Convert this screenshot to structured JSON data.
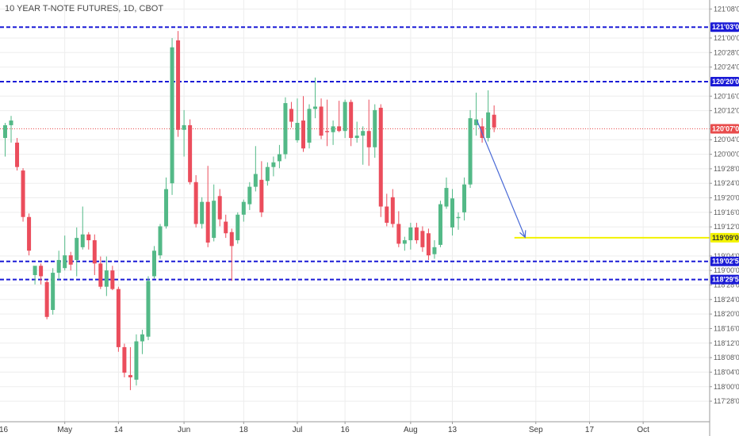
{
  "chart_data": {
    "type": "candlestick",
    "title": "10 YEAR T-NOTE FUTURES, 1D, CBOT",
    "colors": {
      "up": "#53b987",
      "down": "#eb4d5c",
      "level_line": "#1b1bd6",
      "target_line": "#f2f200",
      "arrow": "#4a6ad6",
      "last_price": "#e84c4c",
      "grid": "#ededed"
    },
    "ylim": [
      117.78,
      121.3
    ],
    "y_ticks": [
      {
        "value": 121.25,
        "label": "121'08'0"
      },
      {
        "value": 121.0,
        "label": "121'00'0"
      },
      {
        "value": 120.875,
        "label": "120'28'0"
      },
      {
        "value": 120.75,
        "label": "120'24'0"
      },
      {
        "value": 120.5,
        "label": "120'16'0"
      },
      {
        "value": 120.375,
        "label": "120'12'0"
      },
      {
        "value": 120.125,
        "label": "120'04'0"
      },
      {
        "value": 120.0,
        "label": "120'00'0"
      },
      {
        "value": 119.875,
        "label": "119'28'0"
      },
      {
        "value": 119.75,
        "label": "119'24'0"
      },
      {
        "value": 119.625,
        "label": "119'20'0"
      },
      {
        "value": 119.5,
        "label": "119'16'0"
      },
      {
        "value": 119.375,
        "label": "119'12'0"
      },
      {
        "value": 119.125,
        "label": "119'04'0"
      },
      {
        "value": 119.0,
        "label": "119'00'0"
      },
      {
        "value": 118.875,
        "label": "118'28'0"
      },
      {
        "value": 118.75,
        "label": "118'24'0"
      },
      {
        "value": 118.625,
        "label": "118'20'0"
      },
      {
        "value": 118.5,
        "label": "118'16'0"
      },
      {
        "value": 118.375,
        "label": "118'12'0"
      },
      {
        "value": 118.25,
        "label": "118'08'0"
      },
      {
        "value": 118.125,
        "label": "118'04'0"
      },
      {
        "value": 118.0,
        "label": "118'00'0"
      },
      {
        "value": 117.875,
        "label": "117'28'0"
      }
    ],
    "x_ticks": [
      {
        "bar": -1,
        "label": "16"
      },
      {
        "bar": 10,
        "label": "May"
      },
      {
        "bar": 19,
        "label": "14"
      },
      {
        "bar": 30,
        "label": "Jun"
      },
      {
        "bar": 40,
        "label": "18"
      },
      {
        "bar": 49,
        "label": "Jul"
      },
      {
        "bar": 57,
        "label": "16"
      },
      {
        "bar": 68,
        "label": "Aug"
      },
      {
        "bar": 75,
        "label": "13"
      },
      {
        "bar": 89,
        "label": "Sep"
      },
      {
        "bar": 98,
        "label": "17"
      },
      {
        "bar": 107,
        "label": "Oct"
      }
    ],
    "horizontal_levels": [
      {
        "value": 121.09375,
        "label": "121'03'0",
        "style": "dashed"
      },
      {
        "value": 120.625,
        "label": "120'20'0",
        "style": "dashed"
      },
      {
        "value": 119.078,
        "label": "119'02'5",
        "style": "dashed"
      },
      {
        "value": 118.922,
        "label": "118'29'5",
        "style": "dashed"
      }
    ],
    "target_level": {
      "value": 119.28125,
      "label": "119'09'0",
      "from_bar": 87
    },
    "last_price": {
      "value": 120.21875,
      "label": "120'07'0"
    },
    "projection_arrow": {
      "from_bar": 79,
      "from_value": 120.29,
      "to_bar": 88,
      "to_value": 119.285
    },
    "candles": [
      {
        "o": 120.14,
        "h": 120.27,
        "l": 119.98,
        "c": 120.25
      },
      {
        "o": 120.25,
        "h": 120.33,
        "l": 120.1,
        "c": 120.29
      },
      {
        "o": 120.1,
        "h": 120.14,
        "l": 119.86,
        "c": 119.89
      },
      {
        "o": 119.86,
        "h": 119.88,
        "l": 119.42,
        "c": 119.46
      },
      {
        "o": 119.46,
        "h": 119.49,
        "l": 119.13,
        "c": 119.17
      },
      {
        "o": 118.96,
        "h": 119.02,
        "l": 118.88,
        "c": 119.04
      },
      {
        "o": 119.04,
        "h": 119.06,
        "l": 118.88,
        "c": 118.95
      },
      {
        "o": 118.9,
        "h": 118.92,
        "l": 118.58,
        "c": 118.6
      },
      {
        "o": 118.66,
        "h": 119.02,
        "l": 118.62,
        "c": 118.98
      },
      {
        "o": 118.98,
        "h": 119.17,
        "l": 118.92,
        "c": 119.09
      },
      {
        "o": 119.02,
        "h": 119.3,
        "l": 119.0,
        "c": 119.13
      },
      {
        "o": 119.13,
        "h": 119.16,
        "l": 119.0,
        "c": 119.05
      },
      {
        "o": 119.09,
        "h": 119.37,
        "l": 118.95,
        "c": 119.28
      },
      {
        "o": 119.2,
        "h": 119.55,
        "l": 119.18,
        "c": 119.31
      },
      {
        "o": 119.31,
        "h": 119.33,
        "l": 119.18,
        "c": 119.26
      },
      {
        "o": 119.26,
        "h": 119.31,
        "l": 118.96,
        "c": 119.06
      },
      {
        "o": 119.06,
        "h": 119.12,
        "l": 118.84,
        "c": 118.86
      },
      {
        "o": 118.86,
        "h": 119.12,
        "l": 118.78,
        "c": 119.0
      },
      {
        "o": 119.0,
        "h": 119.04,
        "l": 118.83,
        "c": 118.84
      },
      {
        "o": 118.84,
        "h": 118.86,
        "l": 118.3,
        "c": 118.34
      },
      {
        "o": 118.34,
        "h": 118.37,
        "l": 118.08,
        "c": 118.12
      },
      {
        "o": 118.1,
        "h": 118.34,
        "l": 117.97,
        "c": 118.08
      },
      {
        "o": 118.06,
        "h": 118.45,
        "l": 118.01,
        "c": 118.39
      },
      {
        "o": 118.39,
        "h": 118.49,
        "l": 118.28,
        "c": 118.45
      },
      {
        "o": 118.43,
        "h": 118.95,
        "l": 118.4,
        "c": 118.91
      },
      {
        "o": 118.95,
        "h": 119.21,
        "l": 118.93,
        "c": 119.17
      },
      {
        "o": 119.13,
        "h": 119.4,
        "l": 119.1,
        "c": 119.38
      },
      {
        "o": 119.38,
        "h": 119.8,
        "l": 119.36,
        "c": 119.7
      },
      {
        "o": 119.75,
        "h": 121.0,
        "l": 119.65,
        "c": 120.92
      },
      {
        "o": 120.98,
        "h": 121.06,
        "l": 120.15,
        "c": 120.21
      },
      {
        "o": 120.21,
        "h": 120.38,
        "l": 119.98,
        "c": 120.25
      },
      {
        "o": 120.25,
        "h": 120.3,
        "l": 119.74,
        "c": 119.76
      },
      {
        "o": 119.76,
        "h": 119.82,
        "l": 119.37,
        "c": 119.4
      },
      {
        "o": 119.4,
        "h": 119.63,
        "l": 119.36,
        "c": 119.59
      },
      {
        "o": 119.59,
        "h": 119.9,
        "l": 119.2,
        "c": 119.24
      },
      {
        "o": 119.28,
        "h": 119.74,
        "l": 119.25,
        "c": 119.6
      },
      {
        "o": 119.64,
        "h": 119.7,
        "l": 119.38,
        "c": 119.44
      },
      {
        "o": 119.42,
        "h": 119.48,
        "l": 119.28,
        "c": 119.32
      },
      {
        "o": 119.33,
        "h": 119.36,
        "l": 118.91,
        "c": 119.21
      },
      {
        "o": 119.26,
        "h": 119.5,
        "l": 119.23,
        "c": 119.48
      },
      {
        "o": 119.48,
        "h": 119.61,
        "l": 119.42,
        "c": 119.59
      },
      {
        "o": 119.57,
        "h": 119.76,
        "l": 119.52,
        "c": 119.72
      },
      {
        "o": 119.72,
        "h": 120.07,
        "l": 119.68,
        "c": 119.83
      },
      {
        "o": 119.78,
        "h": 119.94,
        "l": 119.46,
        "c": 119.5
      },
      {
        "o": 119.77,
        "h": 119.93,
        "l": 119.73,
        "c": 119.89
      },
      {
        "o": 119.89,
        "h": 119.98,
        "l": 119.81,
        "c": 119.93
      },
      {
        "o": 119.94,
        "h": 120.08,
        "l": 119.88,
        "c": 120.0
      },
      {
        "o": 120.0,
        "h": 120.49,
        "l": 119.96,
        "c": 120.44
      },
      {
        "o": 120.39,
        "h": 120.45,
        "l": 120.23,
        "c": 120.28
      },
      {
        "o": 120.12,
        "h": 120.48,
        "l": 120.1,
        "c": 120.27
      },
      {
        "o": 120.29,
        "h": 120.5,
        "l": 120.02,
        "c": 120.05
      },
      {
        "o": 120.1,
        "h": 120.43,
        "l": 120.05,
        "c": 120.39
      },
      {
        "o": 120.39,
        "h": 120.66,
        "l": 120.31,
        "c": 120.41
      },
      {
        "o": 120.41,
        "h": 120.48,
        "l": 120.13,
        "c": 120.16
      },
      {
        "o": 120.2,
        "h": 120.47,
        "l": 120.07,
        "c": 120.19
      },
      {
        "o": 120.19,
        "h": 120.29,
        "l": 120.08,
        "c": 120.24
      },
      {
        "o": 120.24,
        "h": 120.46,
        "l": 120.19,
        "c": 120.2
      },
      {
        "o": 120.2,
        "h": 120.47,
        "l": 120.14,
        "c": 120.45
      },
      {
        "o": 120.45,
        "h": 120.47,
        "l": 120.07,
        "c": 120.14
      },
      {
        "o": 120.14,
        "h": 120.28,
        "l": 120.1,
        "c": 120.16
      },
      {
        "o": 120.16,
        "h": 120.24,
        "l": 119.91,
        "c": 120.2
      },
      {
        "o": 120.2,
        "h": 120.47,
        "l": 119.9,
        "c": 120.06
      },
      {
        "o": 120.06,
        "h": 120.43,
        "l": 119.97,
        "c": 120.38
      },
      {
        "o": 120.4,
        "h": 120.43,
        "l": 119.46,
        "c": 119.55
      },
      {
        "o": 119.55,
        "h": 119.66,
        "l": 119.38,
        "c": 119.41
      },
      {
        "o": 119.63,
        "h": 119.7,
        "l": 119.37,
        "c": 119.4
      },
      {
        "o": 119.4,
        "h": 119.51,
        "l": 119.2,
        "c": 119.23
      },
      {
        "o": 119.23,
        "h": 119.29,
        "l": 119.17,
        "c": 119.26
      },
      {
        "o": 119.26,
        "h": 119.41,
        "l": 119.18,
        "c": 119.37
      },
      {
        "o": 119.37,
        "h": 119.41,
        "l": 119.23,
        "c": 119.26
      },
      {
        "o": 119.34,
        "h": 119.38,
        "l": 119.16,
        "c": 119.2
      },
      {
        "o": 119.32,
        "h": 119.36,
        "l": 119.09,
        "c": 119.13
      },
      {
        "o": 119.14,
        "h": 119.26,
        "l": 119.1,
        "c": 119.2
      },
      {
        "o": 119.22,
        "h": 119.6,
        "l": 119.2,
        "c": 119.57
      },
      {
        "o": 119.55,
        "h": 119.8,
        "l": 119.53,
        "c": 119.71
      },
      {
        "o": 119.37,
        "h": 119.7,
        "l": 119.3,
        "c": 119.62
      },
      {
        "o": 119.45,
        "h": 119.5,
        "l": 119.35,
        "c": 119.46
      },
      {
        "o": 119.5,
        "h": 119.8,
        "l": 119.43,
        "c": 119.74
      },
      {
        "o": 119.74,
        "h": 120.38,
        "l": 119.71,
        "c": 120.31
      },
      {
        "o": 120.25,
        "h": 120.53,
        "l": 120.16,
        "c": 120.3
      },
      {
        "o": 120.24,
        "h": 120.31,
        "l": 120.1,
        "c": 120.14
      },
      {
        "o": 120.14,
        "h": 120.55,
        "l": 120.11,
        "c": 120.36
      },
      {
        "o": 120.34,
        "h": 120.42,
        "l": 120.19,
        "c": 120.23
      }
    ]
  }
}
